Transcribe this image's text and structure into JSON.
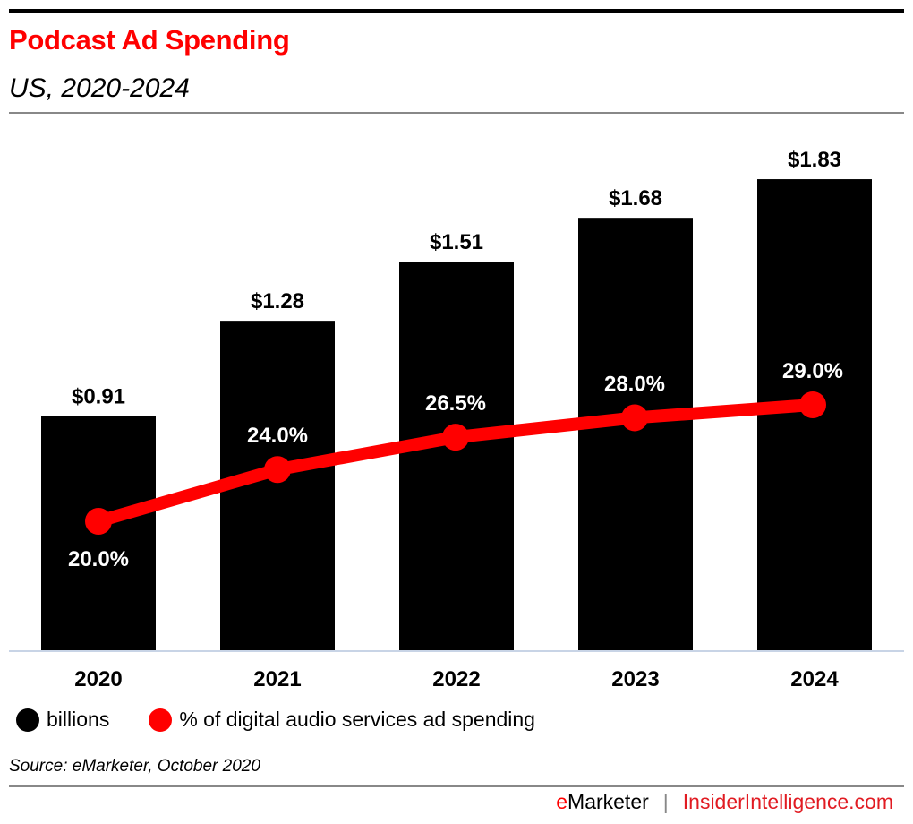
{
  "header": {
    "title": "Podcast Ad Spending",
    "subtitle": "US, 2020-2024"
  },
  "chart_data": {
    "type": "bar",
    "title": "Podcast Ad Spending",
    "subtitle": "US, 2020-2024",
    "categories": [
      "2020",
      "2021",
      "2022",
      "2023",
      "2024"
    ],
    "series": [
      {
        "name": "billions",
        "type": "bar",
        "color": "#000000",
        "values": [
          0.91,
          1.28,
          1.51,
          1.68,
          1.83
        ],
        "labels": [
          "$0.91",
          "$1.28",
          "$1.51",
          "$1.68",
          "$1.83"
        ]
      },
      {
        "name": "% of digital audio services ad spending",
        "type": "line",
        "color": "#ff0000",
        "values": [
          20.0,
          24.0,
          26.5,
          28.0,
          29.0
        ],
        "labels": [
          "20.0%",
          "24.0%",
          "26.5%",
          "28.0%",
          "29.0%"
        ]
      }
    ],
    "xlabel": "",
    "ylabel": "",
    "ylim": [
      0,
      1.83
    ],
    "y2lim": [
      0,
      29.0
    ],
    "grid": false,
    "legend_position": "bottom-left"
  },
  "legend": {
    "items": [
      {
        "label": "billions",
        "color": "#000000"
      },
      {
        "label": "% of digital audio services ad spending",
        "color": "#ff0000"
      }
    ]
  },
  "footer": {
    "source": "Source: eMarketer, October 2020",
    "brand_e": "e",
    "brand_rest": "Marketer",
    "separator": "|",
    "site": "InsiderIntelligence.com"
  },
  "colors": {
    "accent": "#ff0000",
    "bar": "#000000",
    "baseline": "#c8d4e6"
  }
}
